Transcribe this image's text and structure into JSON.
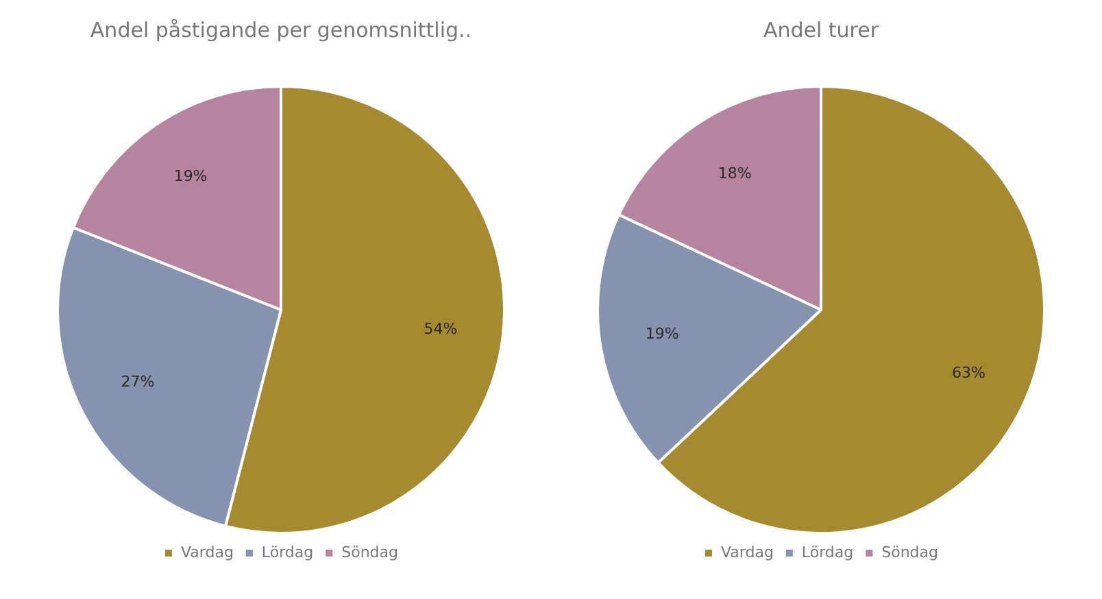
{
  "chart_data": [
    {
      "type": "pie",
      "title": "Andel påstigande per genomsnittlig..",
      "categories": [
        "Vardag",
        "Lördag",
        "Söndag"
      ],
      "values": [
        54,
        27,
        19
      ],
      "value_labels": [
        "54%",
        "27%",
        "19%"
      ],
      "colors": [
        "#a58a30",
        "#8593ae",
        "#b5849f"
      ],
      "legend": "bottom"
    },
    {
      "type": "pie",
      "title": "Andel turer",
      "categories": [
        "Vardag",
        "Lördag",
        "Söndag"
      ],
      "values": [
        63,
        19,
        18
      ],
      "value_labels": [
        "63%",
        "19%",
        "18%"
      ],
      "colors": [
        "#a58a30",
        "#8593ae",
        "#b5849f"
      ],
      "legend": "bottom"
    }
  ]
}
